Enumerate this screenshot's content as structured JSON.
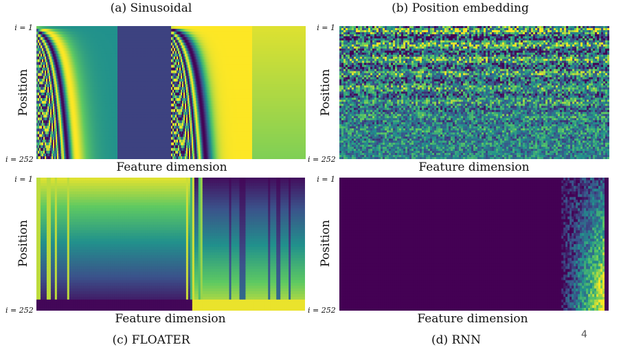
{
  "panels": {
    "a": {
      "title": "(a) Sinusoidal",
      "xlabel": "Feature dimension",
      "ylabel": "Position",
      "tick_top": "i = 1",
      "tick_bottom": "i = 252"
    },
    "b": {
      "title": "(b) Position embedding",
      "xlabel": "Feature dimension",
      "ylabel": "Position",
      "tick_top": "i = 1",
      "tick_bottom": "i = 252"
    },
    "c": {
      "title": "(c) FLOATER",
      "xlabel": "Feature dimension",
      "ylabel": "Position",
      "tick_top": "i = 1",
      "tick_bottom": "i = 252"
    },
    "d": {
      "title": "(d) RNN",
      "xlabel": "Feature dimension",
      "ylabel": "Position",
      "tick_top": "i = 1",
      "tick_bottom": "i = 252"
    }
  },
  "page_number": "4",
  "colormap": [
    "#440154",
    "#3b528b",
    "#21918c",
    "#5ec962",
    "#fde725"
  ]
}
